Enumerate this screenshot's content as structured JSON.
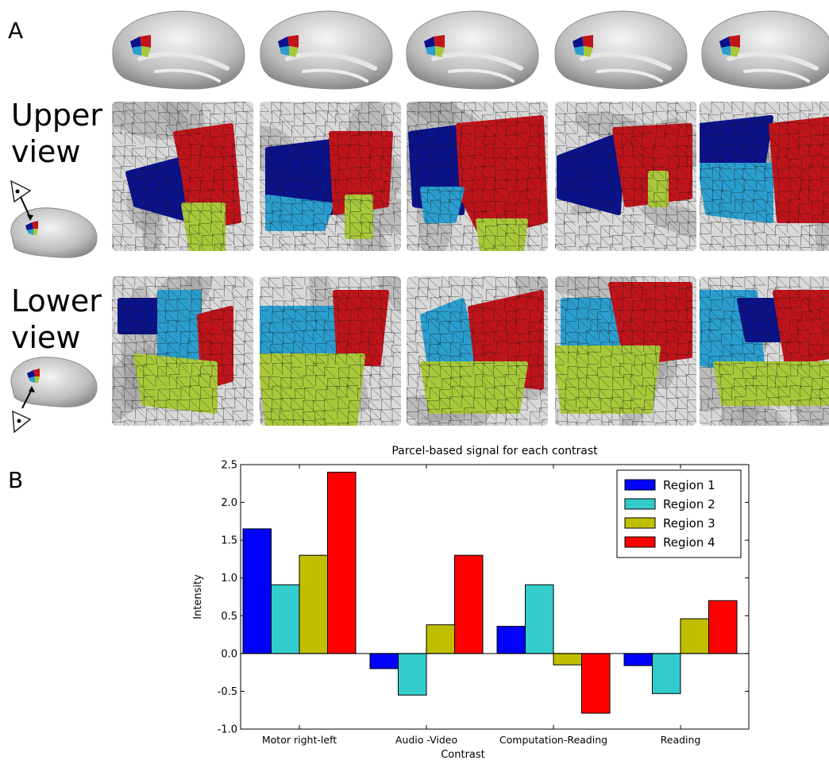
{
  "panel_a": {
    "label": "A",
    "upper_view_label": [
      "Upper",
      "view"
    ],
    "lower_view_label": [
      "Lower",
      "view"
    ],
    "region_colors": {
      "region1": "#0a128c",
      "region2": "#2a9ecf",
      "region3": "#a8c83a",
      "region4": "#c0141a"
    }
  },
  "panel_b": {
    "label": "B"
  },
  "chart_data": {
    "type": "bar",
    "title": "Parcel-based signal for each contrast",
    "xlabel": "Contrast",
    "ylabel": "Intensity",
    "ylim": [
      -1.0,
      2.5
    ],
    "yticks": [
      "2.5",
      "2.0",
      "1.5",
      "1.0",
      "0.5",
      "0.0",
      "-0.5",
      "-1.0"
    ],
    "categories": [
      "Motor right-left",
      "Audio -Video",
      "Computation-Reading",
      "Reading"
    ],
    "legend_position": "top-right",
    "series": [
      {
        "name": "Region 1",
        "color": "#0000ff",
        "values": [
          1.65,
          -0.2,
          0.36,
          -0.16
        ]
      },
      {
        "name": "Region 2",
        "color": "#33cccc",
        "values": [
          0.91,
          -0.55,
          0.91,
          -0.53
        ]
      },
      {
        "name": "Region 3",
        "color": "#bfbf00",
        "values": [
          1.3,
          0.38,
          -0.15,
          0.46
        ]
      },
      {
        "name": "Region 4",
        "color": "#ff0000",
        "values": [
          2.4,
          1.3,
          -0.79,
          0.7
        ]
      }
    ]
  }
}
